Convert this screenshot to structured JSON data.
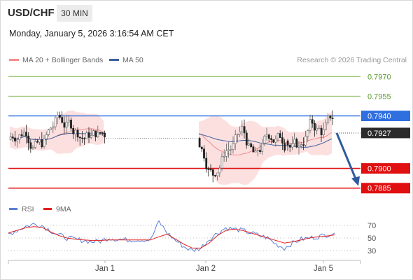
{
  "header": {
    "pair": "USD/CHF",
    "timeframe": "30 MIN",
    "datetime": "Monday, January 5, 2026 3:16:54 AM CET"
  },
  "legend": {
    "ma20_label": "MA 20 + Bollinger Bands",
    "ma50_label": "MA 50",
    "copyright": "Research © 2026 Trading Central"
  },
  "rsi_legend": {
    "rsi_label": "RSI",
    "ma9_label": "9MA"
  },
  "colors": {
    "ma20": "#f28c8c",
    "ma50": "#3a5f9e",
    "resistance_green": "#79b84a",
    "pivot_blue": "#2f6fe0",
    "support_red": "#e01010",
    "candle_up": "#666666",
    "candle_down": "#222222",
    "bollinger_fill": "#fbd5d5",
    "rsi": "#5b7fd6",
    "rsi_ma": "#e02020",
    "arrow": "#2f5b9e"
  },
  "chart_data": {
    "type": "candlestick",
    "x_ticks": [
      "Jan 1",
      "Jan 2",
      "Jan 5"
    ],
    "price_range": [
      0.7879,
      0.7976
    ],
    "current_price": 0.7927,
    "levels": [
      {
        "value": 0.797,
        "label": "0.7970",
        "kind": "resistance"
      },
      {
        "value": 0.7955,
        "label": "0.7955",
        "kind": "resistance"
      },
      {
        "value": 0.794,
        "label": "0.7940",
        "kind": "pivot"
      },
      {
        "value": 0.7927,
        "label": "0.7927",
        "kind": "last"
      },
      {
        "value": 0.79,
        "label": "0.7900",
        "kind": "support"
      },
      {
        "value": 0.7885,
        "label": "0.7885",
        "kind": "support"
      }
    ],
    "forecast_arrow": {
      "from": 0.7927,
      "to": 0.7885
    },
    "segments": [
      {
        "name": "seg1",
        "start": 0.7922,
        "drift": [
          0.0015,
          -0.0007,
          0.0014,
          -0.0008,
          0.0001,
          -0.0001
        ]
      },
      {
        "name": "seg2",
        "start": 0.7923,
        "drift": [
          -0.0018,
          0.0028,
          0.0008,
          -0.0028,
          0.0012,
          -0.0001
        ]
      },
      {
        "name": "seg3",
        "start": 0.7921,
        "drift": [
          -0.0008,
          0.0018,
          -0.0006,
          0.0006
        ]
      }
    ],
    "rsi": {
      "ticks": [
        70,
        50,
        30
      ],
      "range": [
        20,
        80
      ],
      "sample": [
        56,
        62,
        68,
        72,
        70,
        62,
        55,
        50,
        48,
        46,
        44,
        45,
        50,
        48,
        47,
        47,
        47,
        47,
        76,
        58,
        46,
        36,
        30,
        34,
        48,
        58,
        66,
        64,
        62,
        58,
        54,
        50,
        40,
        34,
        42,
        48,
        50,
        52,
        55,
        58
      ],
      "ma_sample": [
        58,
        62,
        66,
        68,
        67,
        60,
        54,
        50,
        48,
        47,
        46,
        46,
        47,
        47,
        47,
        47,
        47,
        47,
        52,
        56,
        48,
        40,
        34,
        34,
        42,
        54,
        62,
        64,
        62,
        58,
        54,
        50,
        46,
        42,
        44,
        47,
        50,
        52,
        53,
        55
      ]
    }
  }
}
